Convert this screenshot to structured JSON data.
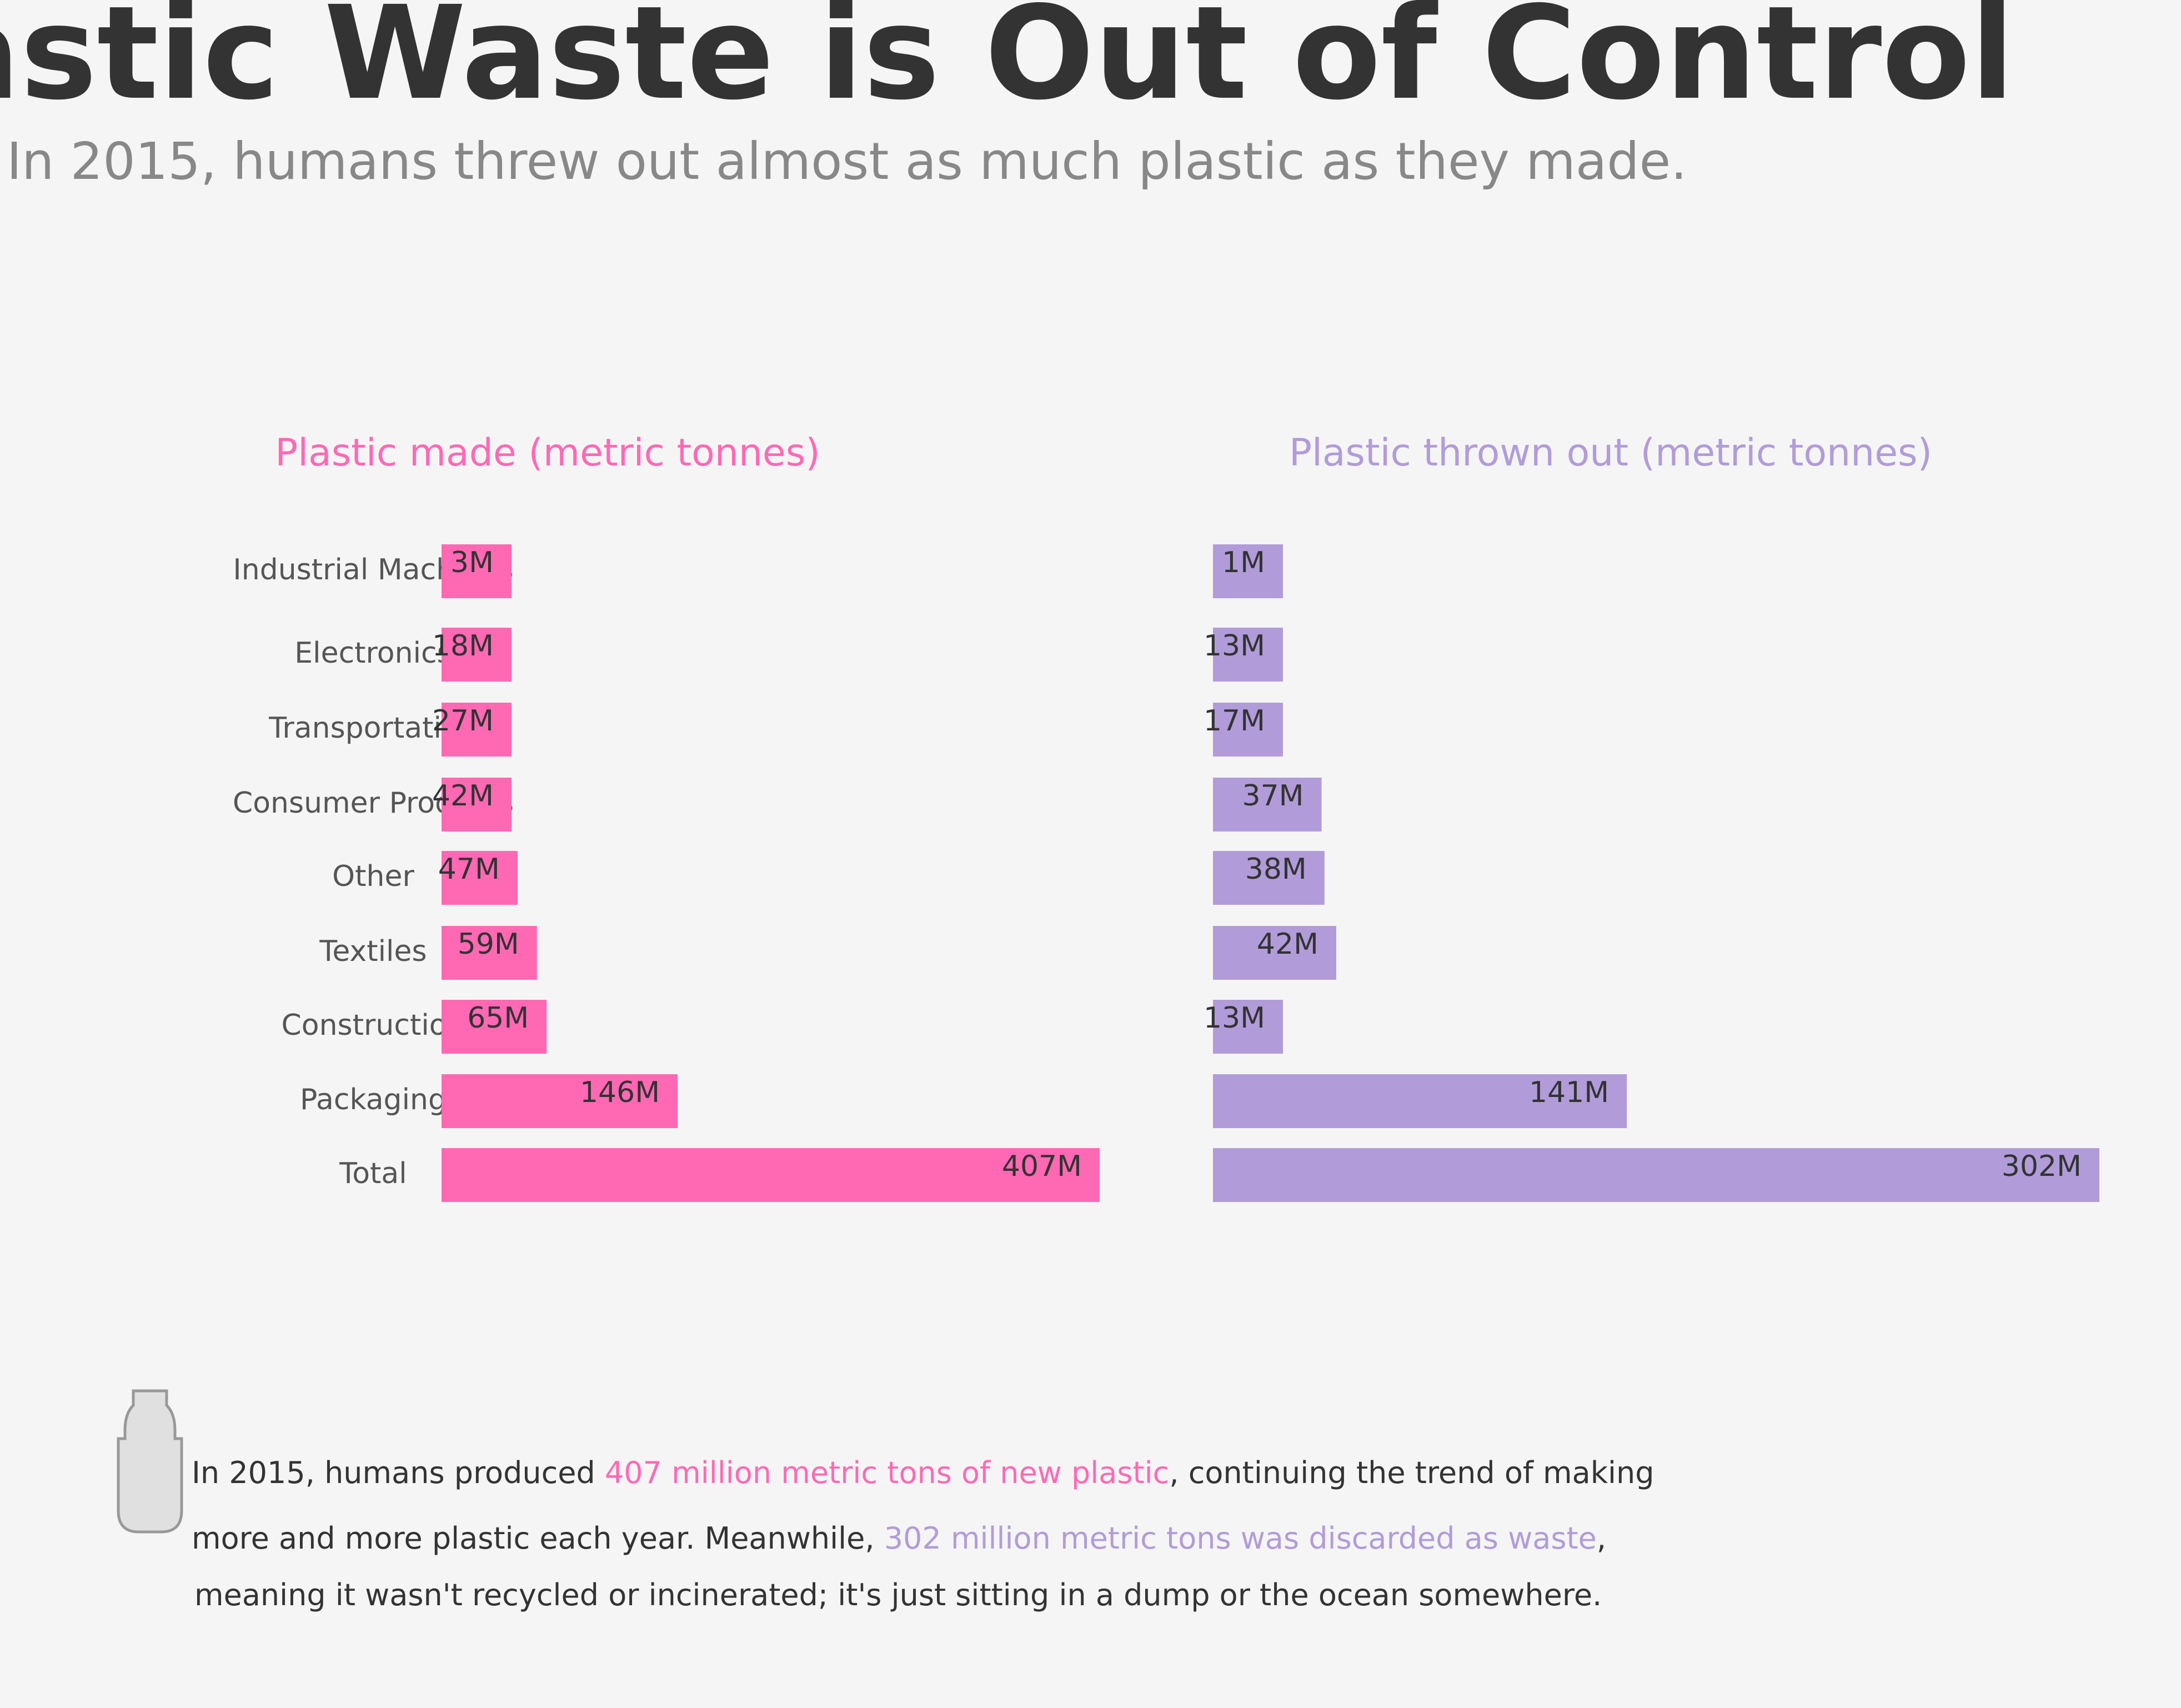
{
  "header": {
    "title": "astic Waste is Out of Control",
    "subtitle": "In 2015, humans threw out almost as much plastic as they made."
  },
  "colors": {
    "made": "#ff69b4",
    "discarded": "#b19cd9",
    "title": "#333333",
    "subtitle": "#888888",
    "category_label": "#555555",
    "value_label": "#333333",
    "background": "#f5f5f5"
  },
  "chart_data": [
    {
      "type": "bar",
      "orientation": "horizontal",
      "title": "Plastic made (metric tonnes)",
      "categories": [
        "Industrial Machines",
        "Electronics",
        "Transportation",
        "Consumer Products",
        "Other",
        "Textiles",
        "Construction",
        "Packaging",
        "Total"
      ],
      "values": [
        3,
        18,
        27,
        42,
        47,
        59,
        65,
        146,
        407
      ],
      "labels": [
        "3M",
        "18M",
        "27M",
        "42M",
        "47M",
        "59M",
        "65M",
        "146M",
        "407M"
      ],
      "color": "#ff69b4",
      "grid": false
    },
    {
      "type": "bar",
      "orientation": "horizontal",
      "title": "Plastic thrown out (metric tonnes)",
      "categories": [
        "Industrial Machines",
        "Electronics",
        "Transportation",
        "Consumer Products",
        "Other",
        "Textiles",
        "Construction",
        "Packaging",
        "Total"
      ],
      "values": [
        1,
        13,
        17,
        37,
        38,
        42,
        13,
        141,
        302
      ],
      "labels": [
        "1M",
        "13M",
        "17M",
        "37M",
        "38M",
        "42M",
        "13M",
        "141M",
        "302M"
      ],
      "color": "#b19cd9",
      "grid": false
    }
  ],
  "footer": {
    "icon": "bottle-icon",
    "line1_a": "In 2015, humans produced ",
    "line1_highlight": "407 million metric tons of new plastic",
    "line1_b": ", continuing the trend of making",
    "line2_a": "more and more plastic each year. Meanwhile, ",
    "line2_highlight": "302 million metric tons was discarded as waste",
    "line2_b": ",",
    "line3": "meaning it wasn't recycled or incinerated; it's just sitting in a dump or the ocean somewhere."
  }
}
